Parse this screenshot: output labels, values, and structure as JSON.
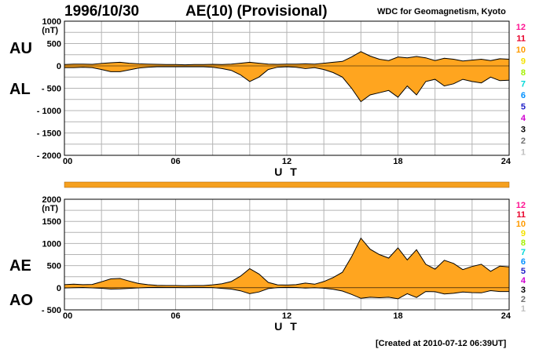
{
  "header": {
    "date": "1996/10/30",
    "title": "AE(10) (Provisional)",
    "source": "WDC for Geomagnetism, Kyoto",
    "created": "[Created at 2010-07-12 06:39UT]"
  },
  "colors": {
    "fill": "#ffa51f",
    "bar": "#f5a01e",
    "grid": "#b4b4b4",
    "line": "#000000"
  },
  "station_scale": [
    {
      "label": "12",
      "color": "#ff1493"
    },
    {
      "label": "11",
      "color": "#e8002a"
    },
    {
      "label": "10",
      "color": "#ff9a00"
    },
    {
      "label": "9",
      "color": "#f4e200"
    },
    {
      "label": "8",
      "color": "#a4f000"
    },
    {
      "label": "7",
      "color": "#00d8d8"
    },
    {
      "label": "6",
      "color": "#0090ff"
    },
    {
      "label": "5",
      "color": "#2020c8"
    },
    {
      "label": "4",
      "color": "#d000d0"
    },
    {
      "label": "3",
      "color": "#000000"
    },
    {
      "label": "2",
      "color": "#707070"
    },
    {
      "label": "1",
      "color": "#c0c0c0"
    }
  ],
  "chart_data": [
    {
      "type": "area",
      "panel": "top",
      "series_labels": [
        "AU",
        "AL"
      ],
      "unit": "(nT)",
      "xlabel": "U T",
      "x_ticks": [
        "00",
        "06",
        "12",
        "18",
        "24"
      ],
      "x_range": [
        0,
        24
      ],
      "y_range": [
        -2000,
        1000
      ],
      "y_ticks": [
        "1000",
        "500",
        "0",
        "- 500",
        "- 1000",
        "- 1500",
        "- 2000"
      ],
      "grid": true,
      "x": [
        0,
        0.5,
        1,
        1.5,
        2,
        2.5,
        3,
        3.5,
        4,
        4.5,
        5,
        5.5,
        6,
        6.5,
        7,
        7.5,
        8,
        8.5,
        9,
        9.5,
        10,
        10.5,
        11,
        11.5,
        12,
        12.5,
        13,
        13.5,
        14,
        14.5,
        15,
        15.5,
        16,
        16.5,
        17,
        17.5,
        18,
        18.5,
        19,
        19.5,
        20,
        20.5,
        21,
        21.5,
        22,
        22.5,
        23,
        23.5,
        24
      ],
      "series": [
        {
          "name": "AU",
          "values": [
            30,
            40,
            40,
            35,
            55,
            70,
            80,
            60,
            45,
            40,
            35,
            30,
            30,
            25,
            30,
            30,
            35,
            30,
            40,
            60,
            80,
            60,
            40,
            35,
            40,
            40,
            45,
            40,
            60,
            80,
            100,
            200,
            320,
            220,
            150,
            120,
            200,
            180,
            210,
            180,
            120,
            170,
            150,
            110,
            130,
            150,
            120,
            160,
            150
          ]
        },
        {
          "name": "AL",
          "values": [
            -40,
            -40,
            -30,
            -40,
            -80,
            -130,
            -130,
            -90,
            -50,
            -30,
            -20,
            -20,
            -20,
            -20,
            -20,
            -20,
            -30,
            -60,
            -100,
            -200,
            -350,
            -250,
            -80,
            -30,
            -20,
            -30,
            -60,
            -40,
            -80,
            -150,
            -250,
            -500,
            -800,
            -650,
            -600,
            -550,
            -700,
            -450,
            -650,
            -350,
            -300,
            -450,
            -400,
            -300,
            -350,
            -380,
            -250,
            -330,
            -320
          ]
        }
      ]
    },
    {
      "type": "area",
      "panel": "bottom",
      "series_labels": [
        "AE",
        "AO"
      ],
      "unit": "(nT)",
      "xlabel": "U T",
      "x_ticks": [
        "00",
        "06",
        "12",
        "18",
        "24"
      ],
      "x_range": [
        0,
        24
      ],
      "y_range": [
        -500,
        2000
      ],
      "y_ticks": [
        "2000",
        "1500",
        "1000",
        "500",
        "0",
        "- 500"
      ],
      "grid": true,
      "x": [
        0,
        0.5,
        1,
        1.5,
        2,
        2.5,
        3,
        3.5,
        4,
        4.5,
        5,
        5.5,
        6,
        6.5,
        7,
        7.5,
        8,
        8.5,
        9,
        9.5,
        10,
        10.5,
        11,
        11.5,
        12,
        12.5,
        13,
        13.5,
        14,
        14.5,
        15,
        15.5,
        16,
        16.5,
        17,
        17.5,
        18,
        18.5,
        19,
        19.5,
        20,
        20.5,
        21,
        21.5,
        22,
        22.5,
        23,
        23.5,
        24
      ],
      "series": [
        {
          "name": "AE",
          "values": [
            70,
            80,
            70,
            75,
            135,
            200,
            210,
            150,
            95,
            70,
            55,
            50,
            50,
            45,
            50,
            50,
            65,
            90,
            140,
            260,
            430,
            310,
            120,
            65,
            60,
            70,
            105,
            80,
            140,
            230,
            350,
            700,
            1120,
            870,
            750,
            670,
            900,
            630,
            860,
            530,
            420,
            620,
            550,
            410,
            480,
            530,
            370,
            490,
            470
          ]
        },
        {
          "name": "AO",
          "values": [
            -5,
            0,
            5,
            -3,
            -12,
            -30,
            -25,
            -15,
            -3,
            5,
            8,
            5,
            5,
            3,
            5,
            5,
            3,
            -15,
            -30,
            -70,
            -135,
            -95,
            -20,
            3,
            10,
            5,
            -8,
            0,
            -10,
            -35,
            -75,
            -150,
            -240,
            -215,
            -225,
            -215,
            -250,
            -135,
            -220,
            -85,
            -90,
            -140,
            -125,
            -95,
            -110,
            -115,
            -65,
            -85,
            -85
          ]
        }
      ]
    }
  ]
}
